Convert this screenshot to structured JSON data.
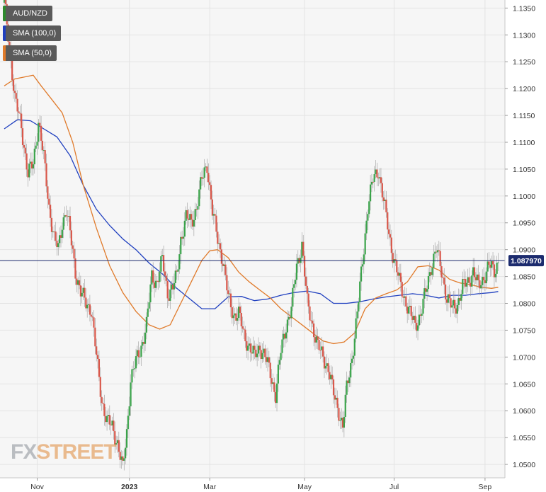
{
  "chart_data": {
    "type": "candlestick",
    "symbol": "AUD/NZD",
    "indicators": [
      {
        "name": "SMA (100,0)",
        "color": "#1f3fbf"
      },
      {
        "name": "SMA (50,0)",
        "color": "#e07a2a"
      }
    ],
    "last_price": "1.087970",
    "x_tick_labels": [
      "Nov",
      "2023",
      "Mar",
      "May",
      "Jul",
      "Sep"
    ],
    "y_tick_labels": [
      "1.1350",
      "1.1300",
      "1.1250",
      "1.1200",
      "1.1150",
      "1.1100",
      "1.1050",
      "1.1000",
      "1.0950",
      "1.0900",
      "1.0850",
      "1.0800",
      "1.0750",
      "1.0700",
      "1.0650",
      "1.0600",
      "1.0550",
      "1.0500"
    ],
    "ylim": [
      1.0475,
      1.1365
    ],
    "grid": true,
    "price_path": [
      [
        0,
        1.136
      ],
      [
        4,
        1.128
      ],
      [
        8,
        1.118
      ],
      [
        13,
        1.113
      ],
      [
        18,
        1.104
      ],
      [
        22,
        1.106
      ],
      [
        26,
        1.114
      ],
      [
        30,
        1.107
      ],
      [
        34,
        1.098
      ],
      [
        38,
        1.092
      ],
      [
        41,
        1.09
      ],
      [
        44,
        1.095
      ],
      [
        47,
        1.0975
      ],
      [
        50,
        1.093
      ],
      [
        54,
        1.086
      ],
      [
        58,
        1.082
      ],
      [
        62,
        1.08
      ],
      [
        66,
        1.079
      ],
      [
        70,
        1.07
      ],
      [
        74,
        1.062
      ],
      [
        78,
        1.058
      ],
      [
        82,
        1.057
      ],
      [
        86,
        1.054
      ],
      [
        90,
        1.049
      ],
      [
        93,
        1.056
      ],
      [
        96,
        1.066
      ],
      [
        100,
        1.069
      ],
      [
        104,
        1.072
      ],
      [
        108,
        1.076
      ],
      [
        112,
        1.085
      ],
      [
        116,
        1.084
      ],
      [
        120,
        1.088
      ],
      [
        124,
        1.082
      ],
      [
        128,
        1.083
      ],
      [
        131,
        1.085
      ],
      [
        134,
        1.092
      ],
      [
        138,
        1.096
      ],
      [
        142,
        1.095
      ],
      [
        146,
        1.098
      ],
      [
        150,
        1.103
      ],
      [
        154,
        1.106
      ],
      [
        158,
        1.097
      ],
      [
        162,
        1.092
      ],
      [
        166,
        1.088
      ],
      [
        170,
        1.081
      ],
      [
        174,
        1.078
      ],
      [
        178,
        1.078
      ],
      [
        182,
        1.074
      ],
      [
        186,
        1.072
      ],
      [
        190,
        1.07
      ],
      [
        194,
        1.072
      ],
      [
        198,
        1.07
      ],
      [
        202,
        1.067
      ],
      [
        206,
        1.063
      ],
      [
        210,
        1.071
      ],
      [
        214,
        1.076
      ],
      [
        218,
        1.079
      ],
      [
        222,
        1.087
      ],
      [
        226,
        1.091
      ],
      [
        230,
        1.08
      ],
      [
        234,
        1.076
      ],
      [
        238,
        1.072
      ],
      [
        242,
        1.07
      ],
      [
        246,
        1.068
      ],
      [
        250,
        1.063
      ],
      [
        254,
        1.06
      ],
      [
        257,
        1.057
      ],
      [
        260,
        1.064
      ],
      [
        264,
        1.07
      ],
      [
        268,
        1.078
      ],
      [
        272,
        1.088
      ],
      [
        276,
        1.098
      ],
      [
        280,
        1.103
      ],
      [
        284,
        1.105
      ],
      [
        288,
        1.099
      ],
      [
        292,
        1.093
      ],
      [
        296,
        1.088
      ],
      [
        300,
        1.084
      ],
      [
        304,
        1.081
      ],
      [
        308,
        1.078
      ],
      [
        312,
        1.076
      ],
      [
        316,
        1.078
      ],
      [
        320,
        1.082
      ],
      [
        324,
        1.087
      ],
      [
        328,
        1.09
      ],
      [
        332,
        1.086
      ],
      [
        336,
        1.081
      ],
      [
        340,
        1.079
      ],
      [
        344,
        1.08
      ],
      [
        348,
        1.083
      ],
      [
        352,
        1.084
      ],
      [
        356,
        1.086
      ],
      [
        360,
        1.083
      ],
      [
        364,
        1.085
      ],
      [
        368,
        1.087
      ],
      [
        372,
        1.086
      ],
      [
        375,
        1.088
      ]
    ],
    "sma100": [
      [
        0,
        1.1125
      ],
      [
        10,
        1.1142
      ],
      [
        20,
        1.114
      ],
      [
        30,
        1.1125
      ],
      [
        40,
        1.111
      ],
      [
        50,
        1.1075
      ],
      [
        60,
        1.102
      ],
      [
        70,
        1.0975
      ],
      [
        80,
        1.0945
      ],
      [
        90,
        1.092
      ],
      [
        100,
        1.09
      ],
      [
        110,
        1.0875
      ],
      [
        120,
        1.0855
      ],
      [
        130,
        1.083
      ],
      [
        140,
        1.081
      ],
      [
        150,
        1.079
      ],
      [
        160,
        1.079
      ],
      [
        170,
        1.0812
      ],
      [
        180,
        1.0813
      ],
      [
        190,
        1.0805
      ],
      [
        200,
        1.0808
      ],
      [
        210,
        1.0815
      ],
      [
        220,
        1.082
      ],
      [
        230,
        1.0823
      ],
      [
        240,
        1.0818
      ],
      [
        250,
        1.08
      ],
      [
        260,
        1.08
      ],
      [
        270,
        1.0803
      ],
      [
        280,
        1.0808
      ],
      [
        290,
        1.0812
      ],
      [
        300,
        1.0815
      ],
      [
        310,
        1.0818
      ],
      [
        320,
        1.0815
      ],
      [
        330,
        1.081
      ],
      [
        340,
        1.0815
      ],
      [
        350,
        1.0815
      ],
      [
        360,
        1.0818
      ],
      [
        370,
        1.082
      ],
      [
        375,
        1.0822
      ]
    ],
    "sma50": [
      [
        0,
        1.1205
      ],
      [
        8,
        1.1218
      ],
      [
        16,
        1.1222
      ],
      [
        22,
        1.1225
      ],
      [
        28,
        1.1205
      ],
      [
        36,
        1.118
      ],
      [
        44,
        1.1155
      ],
      [
        52,
        1.11
      ],
      [
        60,
        1.102
      ],
      [
        70,
        1.094
      ],
      [
        80,
        1.087
      ],
      [
        90,
        1.082
      ],
      [
        100,
        1.0785
      ],
      [
        110,
        1.076
      ],
      [
        118,
        1.0752
      ],
      [
        126,
        1.076
      ],
      [
        134,
        1.08
      ],
      [
        142,
        1.084
      ],
      [
        150,
        1.088
      ],
      [
        156,
        1.0898
      ],
      [
        162,
        1.09
      ],
      [
        170,
        1.0885
      ],
      [
        178,
        1.0858
      ],
      [
        186,
        1.084
      ],
      [
        194,
        1.0825
      ],
      [
        202,
        1.081
      ],
      [
        210,
        1.079
      ],
      [
        218,
        1.0775
      ],
      [
        226,
        1.076
      ],
      [
        234,
        1.0745
      ],
      [
        242,
        1.073
      ],
      [
        250,
        1.0725
      ],
      [
        258,
        1.0728
      ],
      [
        266,
        1.0745
      ],
      [
        274,
        1.079
      ],
      [
        282,
        1.081
      ],
      [
        290,
        1.0818
      ],
      [
        298,
        1.0825
      ],
      [
        306,
        1.084
      ],
      [
        314,
        1.0868
      ],
      [
        322,
        1.087
      ],
      [
        330,
        1.0862
      ],
      [
        338,
        1.0845
      ],
      [
        346,
        1.0838
      ],
      [
        354,
        1.0835
      ],
      [
        362,
        1.083
      ],
      [
        370,
        1.0828
      ],
      [
        375,
        1.083
      ]
    ]
  },
  "watermark": {
    "part1": "FX",
    "part2": "STREET"
  }
}
